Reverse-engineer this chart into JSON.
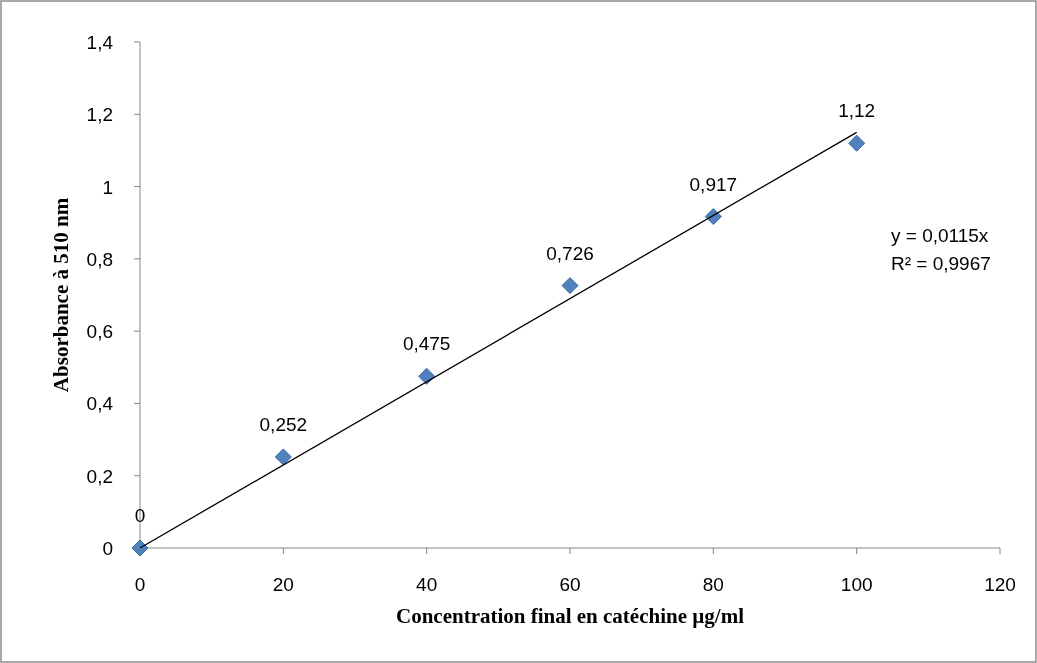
{
  "chart_data": {
    "type": "scatter",
    "xlabel": "Concentration final en catéchine µg/ml",
    "ylabel": "Absorbance à 510 nm",
    "xlim": [
      0,
      120
    ],
    "xticks": [
      0,
      20,
      40,
      60,
      80,
      100,
      120
    ],
    "ylim": [
      0,
      1.4
    ],
    "yticks": [
      0,
      {
        "value": 0.2,
        "label": "0,2"
      },
      {
        "value": 0.4,
        "label": "0,4"
      },
      {
        "value": 0.6,
        "label": "0,6"
      },
      {
        "value": 0.8,
        "label": "0,8"
      },
      1,
      {
        "value": 1.2,
        "label": "1,2"
      },
      {
        "value": 1.4,
        "label": "1,4"
      }
    ],
    "series": [
      {
        "color": "#4f81bd",
        "marker": "diamond",
        "x": [
          0,
          20,
          40,
          60,
          80,
          100
        ],
        "values": [
          0,
          0.252,
          0.475,
          0.726,
          0.917,
          1.12
        ],
        "value_labels": [
          "0",
          "0,252",
          "0,475",
          "0,726",
          "0,917",
          "1,12"
        ]
      },
      {
        "type": "line",
        "color": "#000000",
        "marker": "none",
        "x": [
          0,
          100
        ],
        "values": [
          0,
          1.15
        ]
      }
    ],
    "annotations": [
      "y = 0,0115x",
      "R² = 0,9967"
    ]
  }
}
